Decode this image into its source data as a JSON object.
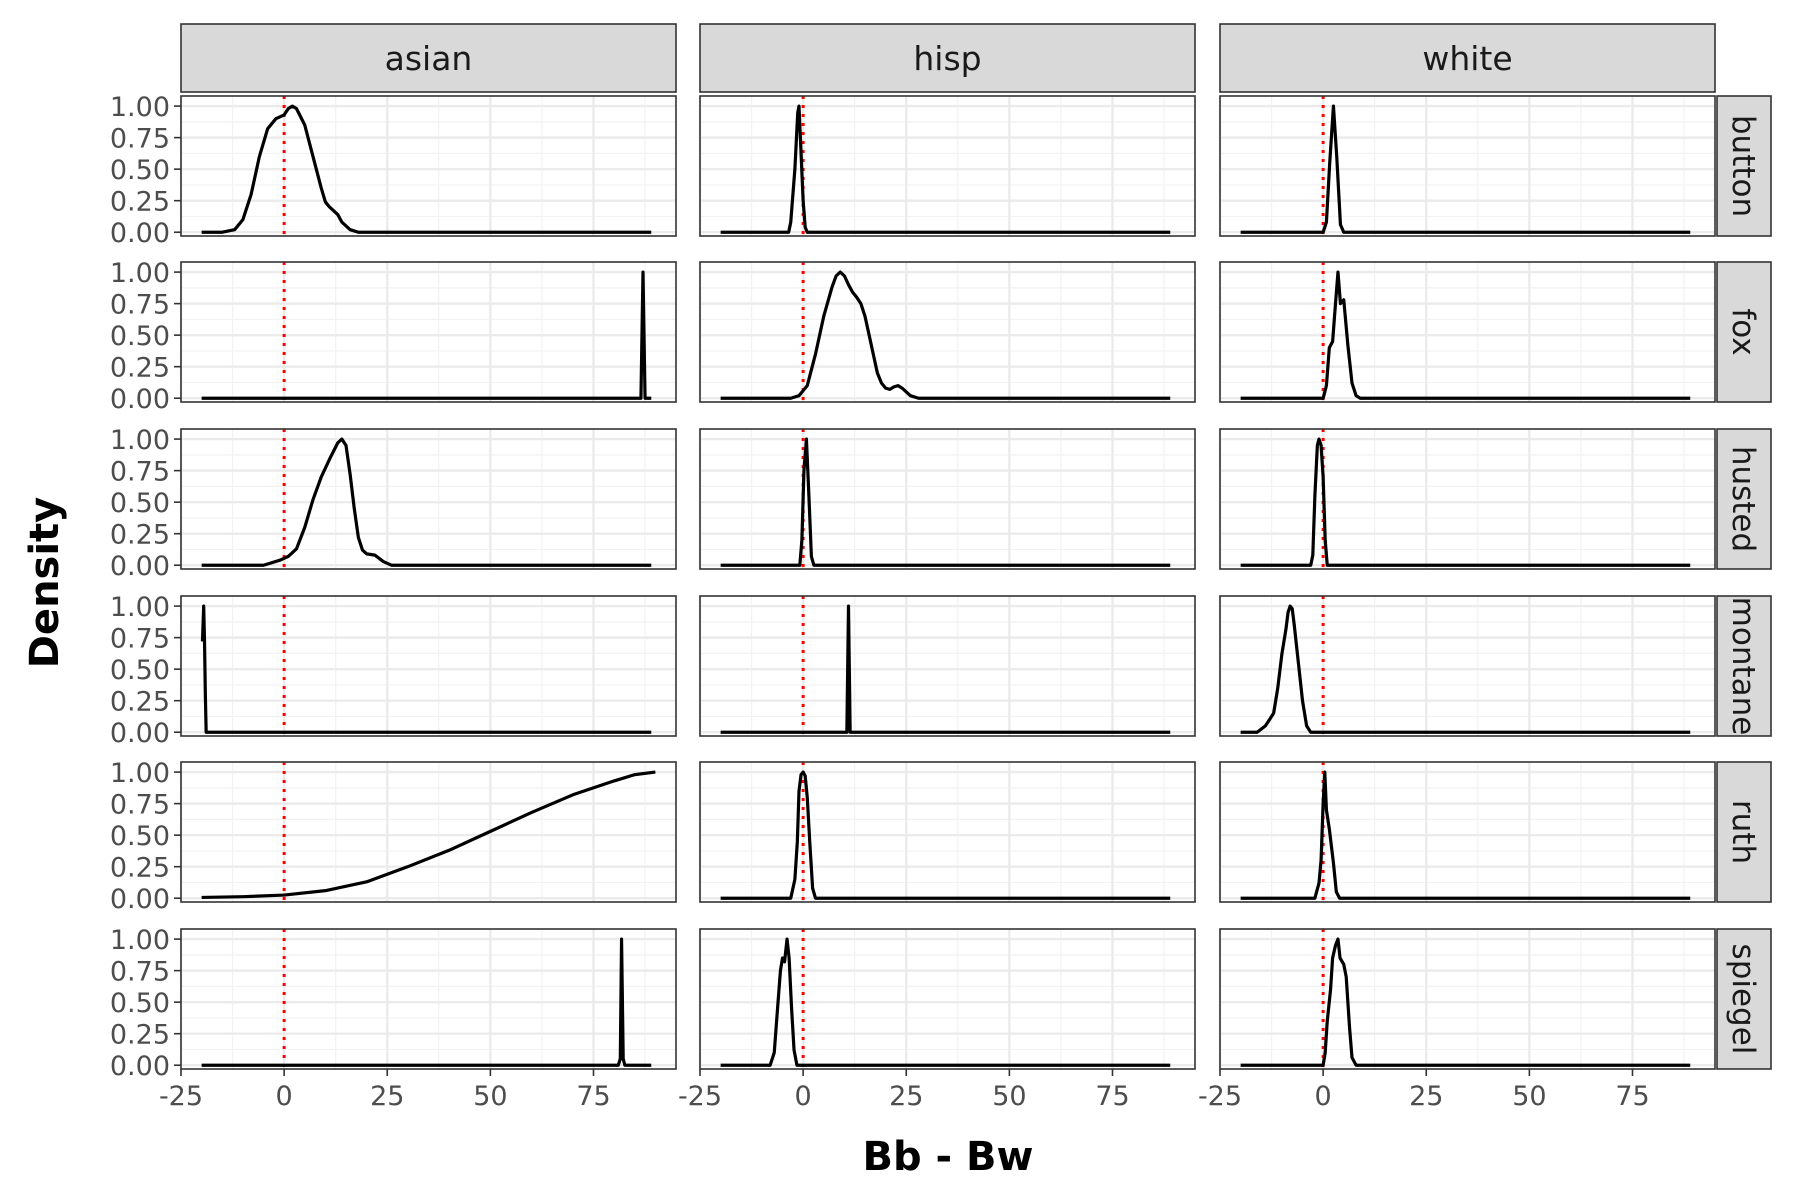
{
  "chart_data": {
    "type": "line",
    "facet_type": "grid",
    "xlabel": "Bb - Bw",
    "ylabel": "Density",
    "xlim": [
      -25,
      95
    ],
    "ylim": [
      -0.03,
      1.08
    ],
    "x_ticks": [
      -25,
      0,
      25,
      50,
      75
    ],
    "x_tick_labels": [
      "-25",
      "0",
      "25",
      "50",
      "75"
    ],
    "y_ticks": [
      0,
      0.25,
      0.5,
      0.75,
      1
    ],
    "y_tick_labels": [
      "0.00",
      "0.25",
      "0.50",
      "0.75",
      "1.00"
    ],
    "columns": [
      "asian",
      "hisp",
      "white"
    ],
    "rows": [
      "button",
      "fox",
      "husted",
      "montane",
      "ruth",
      "spiegel"
    ],
    "reference_line": {
      "x": 0,
      "color": "#ff0000",
      "style": "dotted"
    },
    "curve_color": "#000000",
    "grid": true,
    "panels": [
      {
        "row": "button",
        "col": "asian",
        "points": [
          [
            -20,
            0
          ],
          [
            -15,
            0
          ],
          [
            -12,
            0.02
          ],
          [
            -10,
            0.1
          ],
          [
            -8,
            0.3
          ],
          [
            -6,
            0.6
          ],
          [
            -4,
            0.82
          ],
          [
            -2,
            0.9
          ],
          [
            0,
            0.93
          ],
          [
            1,
            0.98
          ],
          [
            2,
            1.0
          ],
          [
            3,
            0.98
          ],
          [
            5,
            0.85
          ],
          [
            7,
            0.6
          ],
          [
            9,
            0.35
          ],
          [
            10,
            0.24
          ],
          [
            11,
            0.2
          ],
          [
            13,
            0.14
          ],
          [
            14,
            0.08
          ],
          [
            16,
            0.02
          ],
          [
            18,
            0
          ],
          [
            89,
            0
          ]
        ]
      },
      {
        "row": "button",
        "col": "hisp",
        "points": [
          [
            -20,
            0
          ],
          [
            -3.5,
            0
          ],
          [
            -3,
            0.08
          ],
          [
            -2,
            0.5
          ],
          [
            -1.3,
            0.95
          ],
          [
            -1,
            1.0
          ],
          [
            -0.6,
            0.7
          ],
          [
            0,
            0.25
          ],
          [
            0.5,
            0.04
          ],
          [
            1,
            0
          ],
          [
            89,
            0
          ]
        ]
      },
      {
        "row": "button",
        "col": "white",
        "points": [
          [
            -20,
            0
          ],
          [
            0,
            0
          ],
          [
            0.8,
            0.08
          ],
          [
            1.6,
            0.55
          ],
          [
            2.5,
            1.0
          ],
          [
            3.3,
            0.6
          ],
          [
            4.2,
            0.06
          ],
          [
            5,
            0
          ],
          [
            89,
            0
          ]
        ]
      },
      {
        "row": "fox",
        "col": "asian",
        "points": [
          [
            -20,
            0
          ],
          [
            86.5,
            0
          ],
          [
            87,
            1.0
          ],
          [
            87.5,
            0
          ],
          [
            89,
            0
          ]
        ]
      },
      {
        "row": "fox",
        "col": "hisp",
        "points": [
          [
            -20,
            0
          ],
          [
            -3,
            0
          ],
          [
            -1,
            0.02
          ],
          [
            1,
            0.1
          ],
          [
            3,
            0.35
          ],
          [
            5,
            0.65
          ],
          [
            7,
            0.88
          ],
          [
            8,
            0.97
          ],
          [
            9,
            1.0
          ],
          [
            10,
            0.97
          ],
          [
            11,
            0.9
          ],
          [
            12,
            0.84
          ],
          [
            13,
            0.8
          ],
          [
            14,
            0.75
          ],
          [
            15,
            0.65
          ],
          [
            16,
            0.5
          ],
          [
            17,
            0.35
          ],
          [
            18,
            0.2
          ],
          [
            19,
            0.12
          ],
          [
            20,
            0.08
          ],
          [
            21,
            0.07
          ],
          [
            22,
            0.09
          ],
          [
            23,
            0.1
          ],
          [
            24,
            0.08
          ],
          [
            26,
            0.02
          ],
          [
            28,
            0
          ],
          [
            89,
            0
          ]
        ]
      },
      {
        "row": "fox",
        "col": "white",
        "points": [
          [
            -20,
            0
          ],
          [
            0,
            0
          ],
          [
            0.8,
            0.1
          ],
          [
            1.5,
            0.4
          ],
          [
            2.3,
            0.45
          ],
          [
            3,
            0.75
          ],
          [
            3.6,
            1.0
          ],
          [
            4.2,
            0.75
          ],
          [
            5,
            0.78
          ],
          [
            6,
            0.42
          ],
          [
            7,
            0.12
          ],
          [
            8,
            0.02
          ],
          [
            9,
            0
          ],
          [
            89,
            0
          ]
        ]
      },
      {
        "row": "husted",
        "col": "asian",
        "points": [
          [
            -20,
            0
          ],
          [
            -5,
            0
          ],
          [
            -1,
            0.04
          ],
          [
            1,
            0.07
          ],
          [
            3,
            0.13
          ],
          [
            5,
            0.3
          ],
          [
            7,
            0.52
          ],
          [
            9,
            0.7
          ],
          [
            11,
            0.84
          ],
          [
            13,
            0.97
          ],
          [
            14,
            1.0
          ],
          [
            15,
            0.95
          ],
          [
            16,
            0.72
          ],
          [
            17,
            0.45
          ],
          [
            18,
            0.22
          ],
          [
            19,
            0.12
          ],
          [
            20,
            0.09
          ],
          [
            22,
            0.08
          ],
          [
            24,
            0.03
          ],
          [
            26,
            0
          ],
          [
            89,
            0
          ]
        ]
      },
      {
        "row": "husted",
        "col": "hisp",
        "points": [
          [
            -20,
            0
          ],
          [
            -0.8,
            0
          ],
          [
            -0.3,
            0.2
          ],
          [
            0.2,
            0.75
          ],
          [
            0.8,
            1.0
          ],
          [
            1.4,
            0.55
          ],
          [
            2,
            0.07
          ],
          [
            2.6,
            0
          ],
          [
            89,
            0
          ]
        ]
      },
      {
        "row": "husted",
        "col": "white",
        "points": [
          [
            -20,
            0
          ],
          [
            -3,
            0
          ],
          [
            -2.5,
            0.08
          ],
          [
            -2,
            0.55
          ],
          [
            -1.4,
            0.95
          ],
          [
            -1,
            1.0
          ],
          [
            -0.5,
            0.95
          ],
          [
            0,
            0.7
          ],
          [
            0.5,
            0.2
          ],
          [
            1,
            0
          ],
          [
            89,
            0
          ]
        ]
      },
      {
        "row": "montane",
        "col": "asian",
        "points": [
          [
            -19.8,
            0.72
          ],
          [
            -19.5,
            1.0
          ],
          [
            -19.3,
            0.72
          ],
          [
            -19.1,
            0.3
          ],
          [
            -18.9,
            0
          ],
          [
            89,
            0
          ]
        ]
      },
      {
        "row": "montane",
        "col": "hisp",
        "points": [
          [
            -20,
            0
          ],
          [
            10.6,
            0
          ],
          [
            11,
            1.0
          ],
          [
            11.4,
            0
          ],
          [
            89,
            0
          ]
        ]
      },
      {
        "row": "montane",
        "col": "white",
        "points": [
          [
            -20,
            0
          ],
          [
            -16,
            0
          ],
          [
            -14,
            0.05
          ],
          [
            -13,
            0.1
          ],
          [
            -12,
            0.15
          ],
          [
            -11,
            0.35
          ],
          [
            -10,
            0.62
          ],
          [
            -9,
            0.82
          ],
          [
            -8.5,
            0.95
          ],
          [
            -8,
            1.0
          ],
          [
            -7.5,
            0.98
          ],
          [
            -7,
            0.85
          ],
          [
            -6,
            0.55
          ],
          [
            -5,
            0.25
          ],
          [
            -4,
            0.05
          ],
          [
            -3,
            0
          ],
          [
            89,
            0
          ]
        ]
      },
      {
        "row": "ruth",
        "col": "asian",
        "points": [
          [
            -20,
            0.006
          ],
          [
            -10,
            0.012
          ],
          [
            0,
            0.025
          ],
          [
            10,
            0.06
          ],
          [
            20,
            0.13
          ],
          [
            30,
            0.25
          ],
          [
            40,
            0.38
          ],
          [
            50,
            0.53
          ],
          [
            60,
            0.68
          ],
          [
            70,
            0.82
          ],
          [
            80,
            0.93
          ],
          [
            85,
            0.98
          ],
          [
            90,
            1.0
          ]
        ]
      },
      {
        "row": "ruth",
        "col": "hisp",
        "points": [
          [
            -20,
            0
          ],
          [
            -3,
            0
          ],
          [
            -2,
            0.15
          ],
          [
            -1.4,
            0.45
          ],
          [
            -1,
            0.85
          ],
          [
            -0.5,
            0.98
          ],
          [
            0,
            1.0
          ],
          [
            0.5,
            0.97
          ],
          [
            1,
            0.8
          ],
          [
            1.6,
            0.45
          ],
          [
            2.3,
            0.08
          ],
          [
            3,
            0
          ],
          [
            89,
            0
          ]
        ]
      },
      {
        "row": "ruth",
        "col": "white",
        "points": [
          [
            -20,
            0
          ],
          [
            -2,
            0
          ],
          [
            -1,
            0.12
          ],
          [
            -0.5,
            0.3
          ],
          [
            0,
            0.75
          ],
          [
            0.4,
            1.0
          ],
          [
            0.8,
            0.7
          ],
          [
            1.5,
            0.55
          ],
          [
            2.5,
            0.28
          ],
          [
            3.2,
            0.05
          ],
          [
            4,
            0
          ],
          [
            89,
            0
          ]
        ]
      },
      {
        "row": "spiegel",
        "col": "asian",
        "points": [
          [
            -20,
            0
          ],
          [
            81,
            0
          ],
          [
            81.5,
            0.05
          ],
          [
            81.8,
            1.0
          ],
          [
            82.2,
            0.05
          ],
          [
            82.6,
            0
          ],
          [
            89,
            0
          ]
        ]
      },
      {
        "row": "spiegel",
        "col": "hisp",
        "points": [
          [
            -20,
            0
          ],
          [
            -8,
            0
          ],
          [
            -7,
            0.1
          ],
          [
            -6.2,
            0.45
          ],
          [
            -5.5,
            0.75
          ],
          [
            -5,
            0.85
          ],
          [
            -4.5,
            0.82
          ],
          [
            -3.9,
            1.0
          ],
          [
            -3.4,
            0.85
          ],
          [
            -2.8,
            0.45
          ],
          [
            -2.2,
            0.12
          ],
          [
            -1.5,
            0
          ],
          [
            89,
            0
          ]
        ]
      },
      {
        "row": "spiegel",
        "col": "white",
        "points": [
          [
            -20,
            0
          ],
          [
            0,
            0
          ],
          [
            0.5,
            0.1
          ],
          [
            1,
            0.35
          ],
          [
            1.8,
            0.6
          ],
          [
            2.3,
            0.85
          ],
          [
            3,
            0.95
          ],
          [
            3.6,
            1.0
          ],
          [
            4.1,
            0.85
          ],
          [
            5,
            0.8
          ],
          [
            5.6,
            0.7
          ],
          [
            6.4,
            0.3
          ],
          [
            7,
            0.06
          ],
          [
            8,
            0
          ],
          [
            89,
            0
          ]
        ]
      }
    ]
  }
}
